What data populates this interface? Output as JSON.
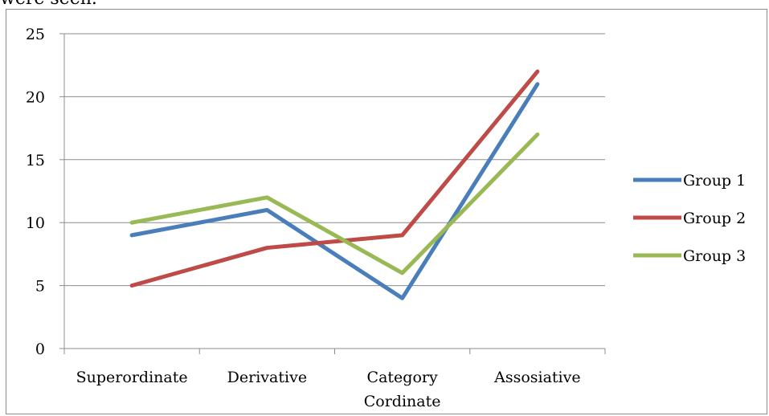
{
  "page": {
    "top_text": "were seen."
  },
  "chart_data": {
    "type": "line",
    "title": "",
    "xlabel": "",
    "ylabel": "",
    "categories": [
      "Superordinate",
      "Derivative",
      "Category Cordinate",
      "Assosiative"
    ],
    "category_lines": [
      [
        "Superordinate"
      ],
      [
        "Derivative"
      ],
      [
        "Category",
        "Cordinate"
      ],
      [
        "Assosiative"
      ]
    ],
    "ylim": [
      0,
      25
    ],
    "yticks": [
      "0",
      "5",
      "10",
      "15",
      "20",
      "25"
    ],
    "grid": "horizontal",
    "legend_position": "right",
    "series": [
      {
        "name": "Group 1",
        "color": "#4a7ebb",
        "values": [
          9,
          11,
          4,
          21
        ]
      },
      {
        "name": "Group 2",
        "color": "#be4b48",
        "values": [
          5,
          8,
          9,
          22
        ]
      },
      {
        "name": "Group 3",
        "color": "#98b954",
        "values": [
          10,
          12,
          6,
          17
        ]
      }
    ]
  }
}
